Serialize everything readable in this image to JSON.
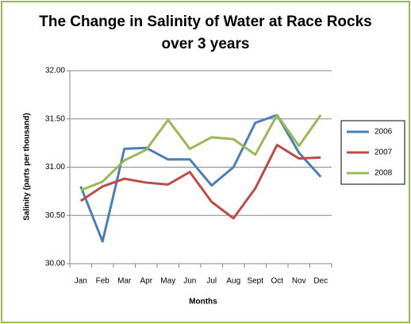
{
  "chart_data": {
    "type": "line",
    "title": "The Change in Salinity of Water at Race Rocks over 3 years",
    "x_label": "Months",
    "y_label": "Salinity (parts per thousand)",
    "categories": [
      "Jan",
      "Feb",
      "Mar",
      "Apr",
      "May",
      "Jun",
      "Jul",
      "Aug",
      "Sept",
      "Oct",
      "Nov",
      "Dec"
    ],
    "series": [
      {
        "name": "2006",
        "color": "#4a7ebb",
        "values": [
          30.8,
          30.23,
          31.19,
          31.2,
          31.08,
          31.08,
          30.81,
          31.0,
          31.46,
          31.54,
          31.15,
          30.9
        ]
      },
      {
        "name": "2007",
        "color": "#be4b48",
        "values": [
          30.65,
          30.8,
          30.88,
          30.84,
          30.82,
          30.95,
          30.64,
          30.47,
          30.78,
          31.23,
          31.09,
          31.1
        ]
      },
      {
        "name": "2008",
        "color": "#98b954",
        "values": [
          30.76,
          30.85,
          31.07,
          31.18,
          31.49,
          31.19,
          31.31,
          31.29,
          31.13,
          31.54,
          31.22,
          31.54
        ]
      }
    ],
    "ylim": [
      30,
      32
    ],
    "yticks": [
      {
        "value": 30,
        "label": "30.00"
      },
      {
        "value": 30.5,
        "label": "30.50"
      },
      {
        "value": 31,
        "label": "31.00"
      },
      {
        "value": 31.5,
        "label": "31.50"
      },
      {
        "value": 32,
        "label": "32.00"
      }
    ],
    "grid": true,
    "legend": "right"
  }
}
